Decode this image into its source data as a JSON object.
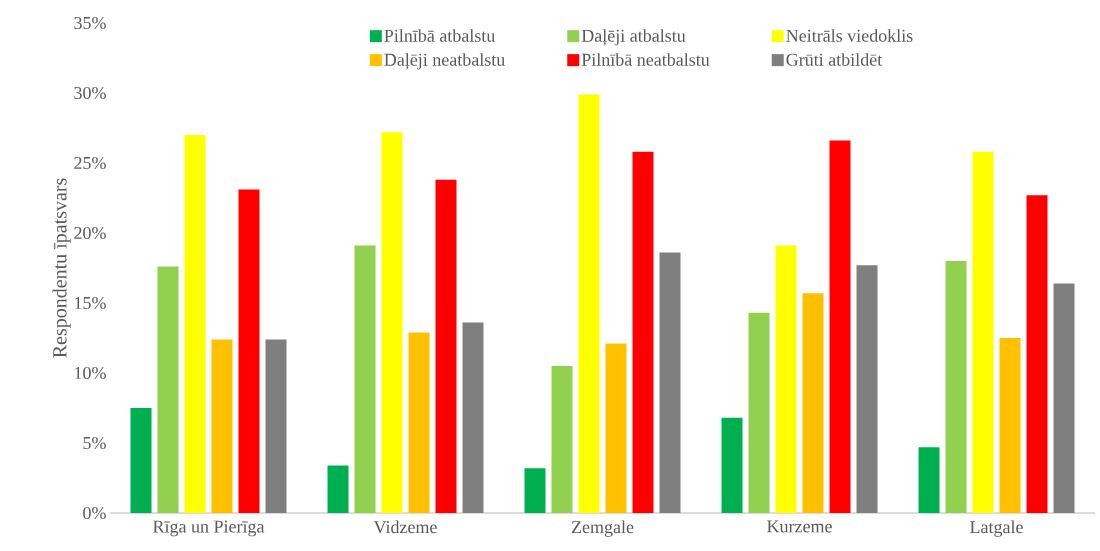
{
  "chart_data": {
    "type": "bar",
    "ylabel": "Respondentu īpatsvars",
    "categories": [
      "Rīga un Pierīga",
      "Vidzeme",
      "Zemgale",
      "Kurzeme",
      "Latgale"
    ],
    "series": [
      {
        "name": "Pilnībā atbalstu",
        "color": "#00b050",
        "values": [
          7.5,
          3.4,
          3.2,
          6.8,
          4.7
        ]
      },
      {
        "name": "Daļēji atbalstu",
        "color": "#92d050",
        "values": [
          17.6,
          19.1,
          10.5,
          14.3,
          18.0
        ]
      },
      {
        "name": "Neitrāls viedoklis",
        "color": "#ffff00",
        "values": [
          27.0,
          27.2,
          29.9,
          19.1,
          25.8
        ]
      },
      {
        "name": "Daļēji neatbalstu",
        "color": "#ffc000",
        "values": [
          12.4,
          12.9,
          12.1,
          15.7,
          12.5
        ]
      },
      {
        "name": "Pilnībā neatbalstu",
        "color": "#ff0000",
        "values": [
          23.1,
          23.8,
          25.8,
          26.6,
          22.7
        ]
      },
      {
        "name": "Grūti atbildēt",
        "color": "#7f7f7f",
        "values": [
          12.4,
          13.6,
          18.6,
          17.7,
          16.4
        ]
      }
    ],
    "ylim": [
      0,
      35
    ],
    "yticks": [
      {
        "value": 0,
        "label": "0%"
      },
      {
        "value": 5,
        "label": "5%"
      },
      {
        "value": 10,
        "label": "10%"
      },
      {
        "value": 15,
        "label": "15%"
      },
      {
        "value": 20,
        "label": "20%"
      },
      {
        "value": 25,
        "label": "25%"
      },
      {
        "value": 30,
        "label": "30%"
      },
      {
        "value": 35,
        "label": "35%"
      }
    ],
    "legend": "top"
  }
}
